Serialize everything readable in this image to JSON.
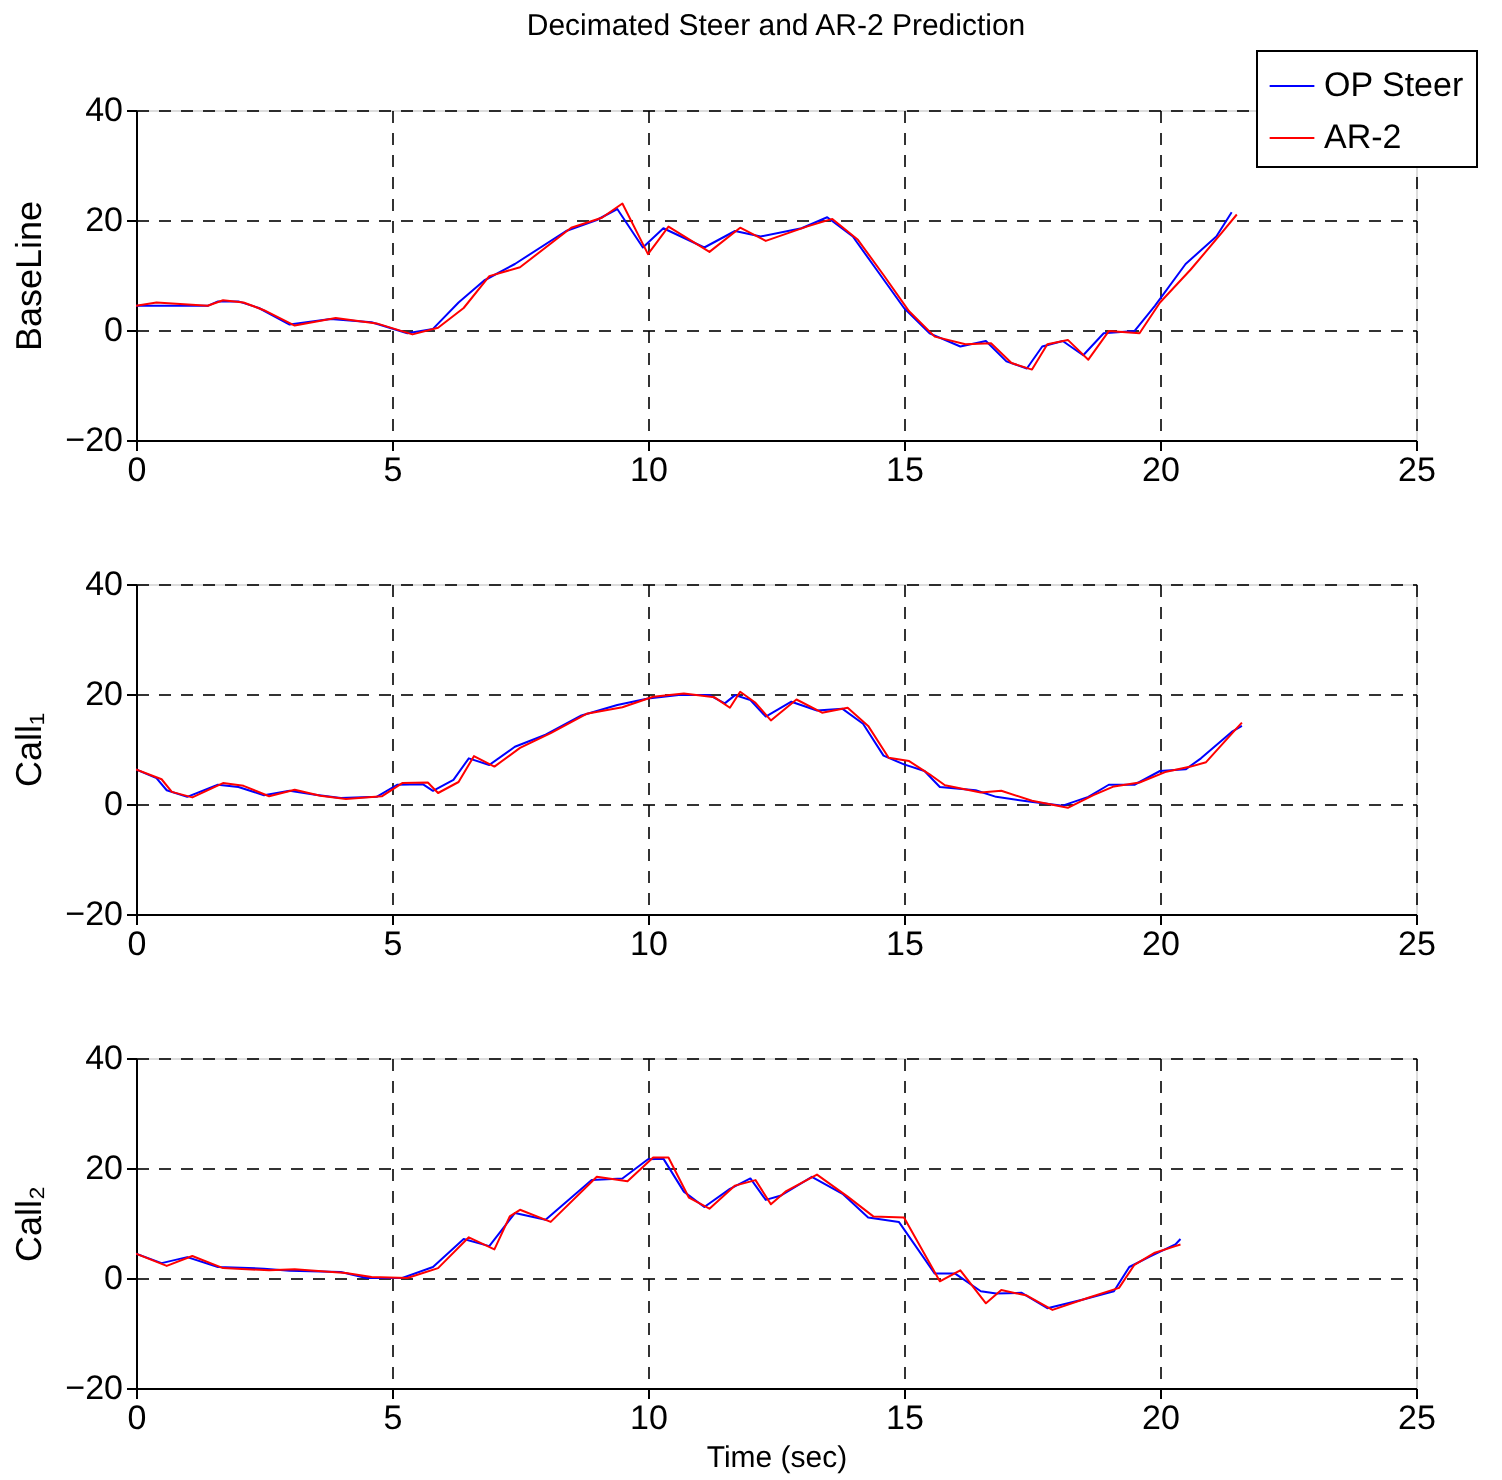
{
  "chart_data": [
    {
      "type": "line",
      "title": "Decimated Steer and AR-2 Prediction",
      "ylabel": "BaseLine",
      "xlim": [
        0,
        25
      ],
      "xticks": [
        0,
        5,
        10,
        15,
        20,
        25
      ],
      "ylim": [
        -20,
        40
      ],
      "yticks": [
        -20,
        0,
        20,
        40
      ],
      "grid": true,
      "legend": "top right",
      "line_style": "solid",
      "series": [
        {
          "name": "OP Steer",
          "color": "#0000ff",
          "x": [
            0,
            1.4,
            1.6,
            2,
            2.4,
            3,
            3.8,
            4.6,
            5.3,
            5.8,
            6.3,
            6.8,
            7.4,
            8.4,
            9,
            9.4,
            9.9,
            10.3,
            11.1,
            11.7,
            12.2,
            13,
            13.5,
            14,
            14.5,
            15,
            15.5,
            16.1,
            16.6,
            17,
            17.4,
            17.7,
            18.1,
            18.5,
            18.9,
            19.5,
            19.9,
            20.5,
            21.1,
            21.4
          ],
          "values": [
            4.4,
            4.4,
            5.2,
            5.2,
            4,
            1,
            2,
            1.4,
            -0.6,
            0.2,
            5,
            9,
            12,
            18,
            20,
            22,
            15,
            18.5,
            15,
            18,
            17,
            18.5,
            20.5,
            17,
            10.5,
            4,
            -0.6,
            -3,
            -2,
            -5.7,
            -7,
            -3,
            -2,
            -4.6,
            -0.6,
            -0.2,
            4.4,
            12,
            17,
            21.4
          ]
        },
        {
          "name": "AR-2",
          "color": "#ff0000",
          "x": [
            0,
            0.4,
            1.4,
            1.7,
            2.1,
            2.5,
            3.1,
            3.9,
            4.7,
            5.4,
            5.9,
            6.4,
            6.9,
            7.5,
            8.5,
            9.1,
            9.5,
            10,
            10.4,
            11.2,
            11.8,
            12.3,
            13.1,
            13.6,
            14.1,
            14.6,
            15.1,
            15.6,
            16.2,
            16.7,
            17.1,
            17.5,
            17.8,
            18.2,
            18.6,
            19,
            19.6,
            20,
            20.6,
            21.2,
            21.5
          ],
          "values": [
            4.4,
            5,
            4.4,
            5.4,
            5,
            3.6,
            0.8,
            2.2,
            1.2,
            -0.8,
            0.4,
            4,
            9.8,
            11.4,
            18.6,
            20.4,
            23,
            13.8,
            18.8,
            14.2,
            18.6,
            16.2,
            18.8,
            20.2,
            16.4,
            10,
            3.4,
            -1.2,
            -2.6,
            -2.4,
            -6,
            -7.2,
            -2.6,
            -1.8,
            -5.4,
            -0.2,
            -0.6,
            5,
            11,
            17.6,
            21
          ]
        }
      ]
    },
    {
      "type": "line",
      "ylabel": "Call₁",
      "xlim": [
        0,
        25
      ],
      "xticks": [
        0,
        5,
        10,
        15,
        20,
        25
      ],
      "ylim": [
        -20,
        40
      ],
      "yticks": [
        -20,
        0,
        20,
        40
      ],
      "grid": true,
      "line_style": "solid",
      "series": [
        {
          "color": "#0000ff",
          "x": [
            0,
            0.4,
            0.6,
            1,
            1.6,
            2,
            2.5,
            3,
            3.5,
            4,
            4.7,
            5.1,
            5.6,
            5.8,
            6.2,
            6.5,
            6.9,
            7.4,
            8,
            8.7,
            9.4,
            10,
            10.6,
            11.2,
            11.5,
            11.7,
            12,
            12.3,
            12.8,
            13.3,
            13.8,
            14.2,
            14.6,
            15,
            15.4,
            15.7,
            16.4,
            16.8,
            17.4,
            18.1,
            18.6,
            19,
            19.5,
            20,
            20.5,
            20.8,
            21.4,
            21.6
          ],
          "values": [
            6.3,
            4.7,
            2.5,
            1.3,
            3.5,
            3.1,
            1.6,
            2.4,
            1.7,
            1.1,
            1.3,
            3.5,
            3.6,
            2.4,
            4.4,
            8.3,
            7.1,
            10.4,
            12.6,
            16.1,
            18,
            19.2,
            19.8,
            19.8,
            18.3,
            19.8,
            18.9,
            15.9,
            18.6,
            17,
            17.3,
            14.6,
            8.8,
            7.2,
            6,
            3.1,
            2.5,
            1.3,
            0.5,
            -0.3,
            1.3,
            3.5,
            3.5,
            6,
            6.3,
            8.3,
            13.1,
            14.2
          ]
        },
        {
          "color": "#ff0000",
          "x": [
            0,
            0.5,
            0.7,
            1.1,
            1.7,
            2.1,
            2.6,
            3.1,
            3.6,
            4.1,
            4.8,
            5.2,
            5.7,
            5.9,
            6.3,
            6.6,
            7,
            7.5,
            8.1,
            8.8,
            9.5,
            10.1,
            10.7,
            11.3,
            11.6,
            11.8,
            12.1,
            12.4,
            12.9,
            13.4,
            13.9,
            14.3,
            14.7,
            15.1,
            15.5,
            15.8,
            16.5,
            16.9,
            17.5,
            18.2,
            18.7,
            19.1,
            19.6,
            20.1,
            20.6,
            20.9,
            21.5,
            21.6
          ],
          "values": [
            6.3,
            4.5,
            2.2,
            1.2,
            3.8,
            3.3,
            1.4,
            2.6,
            1.5,
            0.9,
            1.4,
            3.8,
            3.9,
            2,
            4,
            8.7,
            6.8,
            10.2,
            12.9,
            16.4,
            17.6,
            19.5,
            20.1,
            19.4,
            17.5,
            20.4,
            18.4,
            15.2,
            19,
            16.6,
            17.5,
            14.2,
            8.4,
            7.8,
            5.4,
            3.4,
            2.1,
            2.4,
            0.6,
            -0.7,
            1.6,
            3.2,
            3.9,
            5.8,
            6.8,
            7.6,
            13.8,
            14.8
          ]
        }
      ]
    },
    {
      "type": "line",
      "xlabel": "Time (sec)",
      "ylabel": "Call₂",
      "xlim": [
        0,
        25
      ],
      "xticks": [
        0,
        5,
        10,
        15,
        20,
        25
      ],
      "ylim": [
        -20,
        40
      ],
      "yticks": [
        -20,
        0,
        20,
        40
      ],
      "grid": true,
      "line_style": "solid",
      "series": [
        {
          "color": "#0000ff",
          "x": [
            0,
            0.5,
            1,
            1.6,
            2.5,
            3,
            4,
            4.5,
            5.2,
            5.8,
            6.4,
            6.9,
            7.4,
            8,
            8.9,
            9.5,
            10,
            10.3,
            10.7,
            11.1,
            11.6,
            12,
            12.3,
            12.6,
            13.2,
            13.8,
            14.3,
            14.9,
            15.6,
            16,
            16.5,
            16.8,
            17.3,
            17.8,
            18.5,
            19.1,
            19.4,
            19.8,
            20.3,
            20.4
          ],
          "values": [
            4.4,
            2.7,
            3.8,
            2,
            1.7,
            1.3,
            1.1,
            0,
            0,
            2,
            7.1,
            5.8,
            11.8,
            10.6,
            17.8,
            18.1,
            21.6,
            21.7,
            15.7,
            12.9,
            16.2,
            18.1,
            14.2,
            15,
            18.4,
            15.3,
            11,
            10.2,
            0.8,
            0.8,
            -2.4,
            -2.8,
            -2.7,
            -5.5,
            -3.9,
            -2.4,
            2,
            3.9,
            6.1,
            7.1
          ]
        },
        {
          "color": "#ff0000",
          "x": [
            0,
            0.6,
            1.1,
            1.7,
            2.6,
            3.1,
            4.1,
            4.6,
            5.3,
            5.9,
            6.5,
            7,
            7.3,
            7.5,
            8.1,
            9,
            9.6,
            10.1,
            10.4,
            10.8,
            11.2,
            11.7,
            12.1,
            12.4,
            12.7,
            13.3,
            13.9,
            14.4,
            15,
            15.7,
            16.1,
            16.6,
            16.9,
            17.4,
            17.9,
            18.6,
            19.2,
            19.5,
            19.9,
            20.3,
            20.4
          ],
          "values": [
            4.4,
            2.2,
            4,
            1.8,
            1.4,
            1.6,
            0.9,
            0.2,
            0,
            1.8,
            7.4,
            5.2,
            11.2,
            12.4,
            10.2,
            18.4,
            17.6,
            21.9,
            21.9,
            14.6,
            12.6,
            16.8,
            17.8,
            13.4,
            15.8,
            18.8,
            14.8,
            11.2,
            11,
            -0.6,
            1.4,
            -4.6,
            -2.2,
            -3.2,
            -5.8,
            -3.6,
            -1.8,
            2.4,
            4.6,
            5.8,
            6.1
          ]
        }
      ]
    }
  ]
}
